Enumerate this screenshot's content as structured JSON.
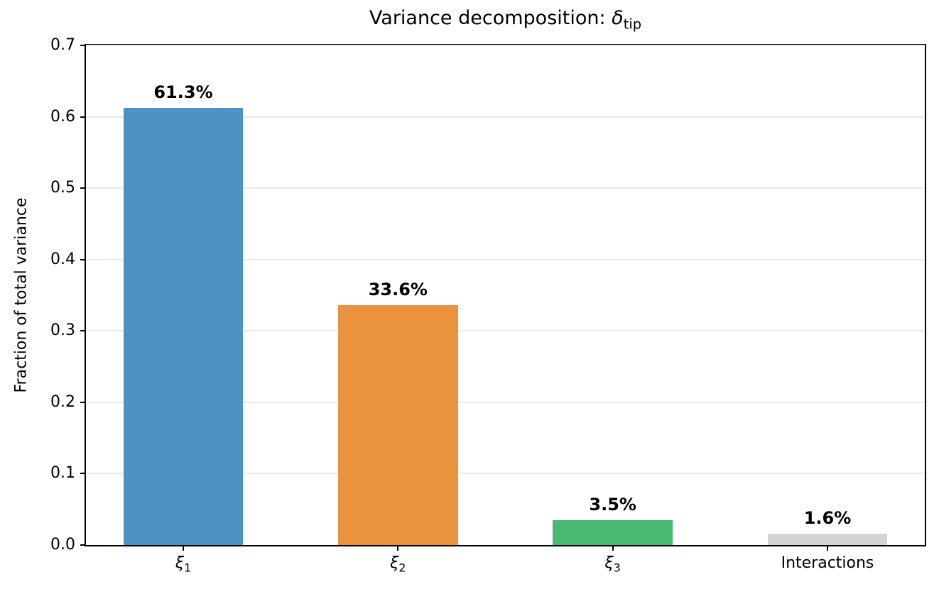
{
  "title": {
    "prefix": "Variance decomposition: ",
    "symbol": "δ",
    "subscript": "tip"
  },
  "chart_data": {
    "type": "bar",
    "title": "Variance decomposition: δ_tip",
    "xlabel": "",
    "ylabel": "Fraction of total variance",
    "ylim": [
      0,
      0.7
    ],
    "yticks": [
      0.0,
      0.1,
      0.2,
      0.3,
      0.4,
      0.5,
      0.6,
      0.7
    ],
    "grid": "horizontal",
    "categories": [
      {
        "base": "ξ",
        "sub": "1",
        "italic": true
      },
      {
        "base": "ξ",
        "sub": "2",
        "italic": true
      },
      {
        "base": "ξ",
        "sub": "3",
        "italic": true
      },
      {
        "base": "Interactions",
        "sub": "",
        "italic": false
      }
    ],
    "values": [
      0.613,
      0.336,
      0.035,
      0.016
    ],
    "bar_labels": [
      "61.3%",
      "33.6%",
      "3.5%",
      "1.6%"
    ],
    "bar_colors": [
      "#4E92C4",
      "#E9933F",
      "#4AB973",
      "#D4D4D4"
    ]
  },
  "colors": {
    "grid": "#EBEBEB",
    "axis": "#000000",
    "background": "#FFFFFF"
  }
}
